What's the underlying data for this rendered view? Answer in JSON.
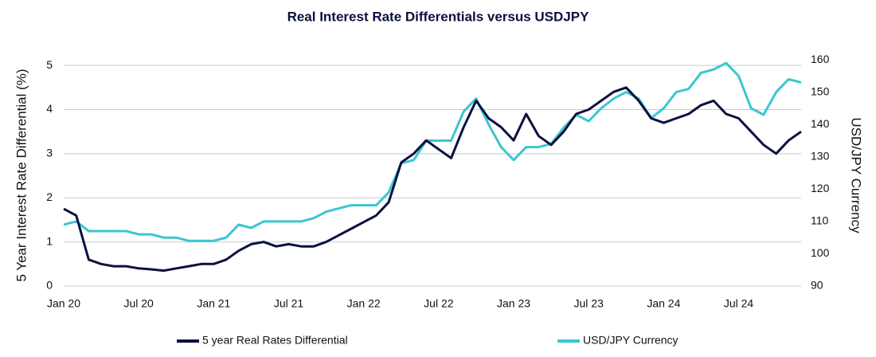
{
  "chart_data": {
    "type": "line",
    "title": "Real Interest Rate Differentials versus USDJPY",
    "y_label": "5 Year Interest Rate Differential (%)",
    "y2_label": "USD/JPY Currency",
    "x": [
      "2020-01",
      "2020-02",
      "2020-03",
      "2020-04",
      "2020-05",
      "2020-06",
      "2020-07",
      "2020-08",
      "2020-09",
      "2020-10",
      "2020-11",
      "2020-12",
      "2021-01",
      "2021-02",
      "2021-03",
      "2021-04",
      "2021-05",
      "2021-06",
      "2021-07",
      "2021-08",
      "2021-09",
      "2021-10",
      "2021-11",
      "2021-12",
      "2022-01",
      "2022-02",
      "2022-03",
      "2022-04",
      "2022-05",
      "2022-06",
      "2022-07",
      "2022-08",
      "2022-09",
      "2022-10",
      "2022-11",
      "2022-12",
      "2023-01",
      "2023-02",
      "2023-03",
      "2023-04",
      "2023-05",
      "2023-06",
      "2023-07",
      "2023-08",
      "2023-09",
      "2023-10",
      "2023-11",
      "2023-12",
      "2024-01",
      "2024-02",
      "2024-03",
      "2024-04",
      "2024-05",
      "2024-06",
      "2024-07",
      "2024-08",
      "2024-09",
      "2024-10",
      "2024-11",
      "2024-12"
    ],
    "xlim": [
      "2020-01",
      "2024-12"
    ],
    "xticks": [
      {
        "value": "2020-01",
        "label": "Jan 20"
      },
      {
        "value": "2020-07",
        "label": "Jul 20"
      },
      {
        "value": "2021-01",
        "label": "Jan 21"
      },
      {
        "value": "2021-07",
        "label": "Jul 21"
      },
      {
        "value": "2022-01",
        "label": "Jan 22"
      },
      {
        "value": "2022-07",
        "label": "Jul 22"
      },
      {
        "value": "2023-01",
        "label": "Jan 23"
      },
      {
        "value": "2023-07",
        "label": "Jul 23"
      },
      {
        "value": "2024-01",
        "label": "Jan 24"
      },
      {
        "value": "2024-07",
        "label": "Jul 24"
      }
    ],
    "ylim": [
      0,
      5.2
    ],
    "yticks": [
      0,
      1,
      2,
      3,
      4,
      5
    ],
    "y2lim": [
      90,
      161
    ],
    "y2ticks": [
      90,
      100,
      110,
      120,
      130,
      140,
      150,
      160
    ],
    "grid": true,
    "legend": "bottom",
    "series": [
      {
        "name": "5 year Real Rates Differential",
        "color": "#0b1040",
        "values": [
          1.75,
          1.6,
          0.6,
          0.5,
          0.45,
          0.45,
          0.4,
          0.38,
          0.35,
          0.4,
          0.45,
          0.5,
          0.5,
          0.6,
          0.8,
          0.95,
          1.0,
          0.9,
          0.95,
          0.9,
          0.9,
          1.0,
          1.15,
          1.3,
          1.45,
          1.6,
          1.9,
          2.8,
          3.0,
          3.3,
          3.1,
          2.9,
          3.6,
          4.2,
          3.8,
          3.6,
          3.3,
          3.9,
          3.4,
          3.2,
          3.5,
          3.9,
          4.0,
          4.2,
          4.4,
          4.5,
          4.2,
          3.8,
          3.7,
          3.8,
          3.9,
          4.1,
          4.2,
          3.9,
          3.8,
          3.5,
          3.2,
          3.0,
          3.3,
          3.5
        ]
      },
      {
        "name": "USD/JPY Currency",
        "color": "#3cc6d0",
        "axis": "y2",
        "values": [
          109,
          110,
          107,
          107,
          107,
          107,
          106,
          106,
          105,
          105,
          104,
          104,
          104,
          105,
          109,
          108,
          110,
          110,
          110,
          110,
          111,
          113,
          114,
          115,
          115,
          115,
          119,
          128,
          129,
          135,
          135,
          135,
          144,
          148,
          140,
          133,
          129,
          133,
          133,
          134,
          139,
          143,
          141,
          145,
          148,
          150,
          148,
          142,
          145,
          150,
          151,
          156,
          157,
          159,
          155,
          145,
          143,
          150,
          154,
          153
        ]
      }
    ]
  }
}
